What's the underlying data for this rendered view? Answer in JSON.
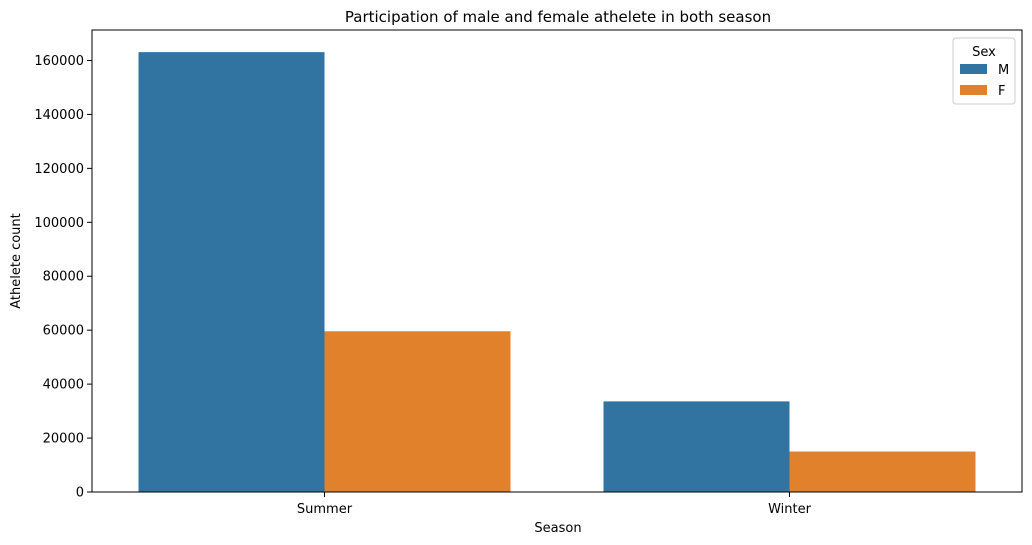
{
  "chart_data": {
    "type": "bar",
    "title": "Participation of male and female athelete in both season",
    "xlabel": "Season",
    "ylabel": "Athelete count",
    "categories": [
      "Summer",
      "Winter"
    ],
    "series": [
      {
        "name": "M",
        "color": "#3274a1",
        "values": [
          163100,
          33600
        ]
      },
      {
        "name": "F",
        "color": "#e1812c",
        "values": [
          59600,
          15000
        ]
      }
    ],
    "ylim": [
      0,
      171300
    ],
    "yticks": [
      0,
      20000,
      40000,
      60000,
      80000,
      100000,
      120000,
      140000,
      160000
    ],
    "ytick_labels": [
      "0",
      "20000",
      "40000",
      "60000",
      "80000",
      "100000",
      "120000",
      "140000",
      "160000"
    ],
    "legend": {
      "title": "Sex",
      "placement": "top-right"
    },
    "grid": false
  }
}
